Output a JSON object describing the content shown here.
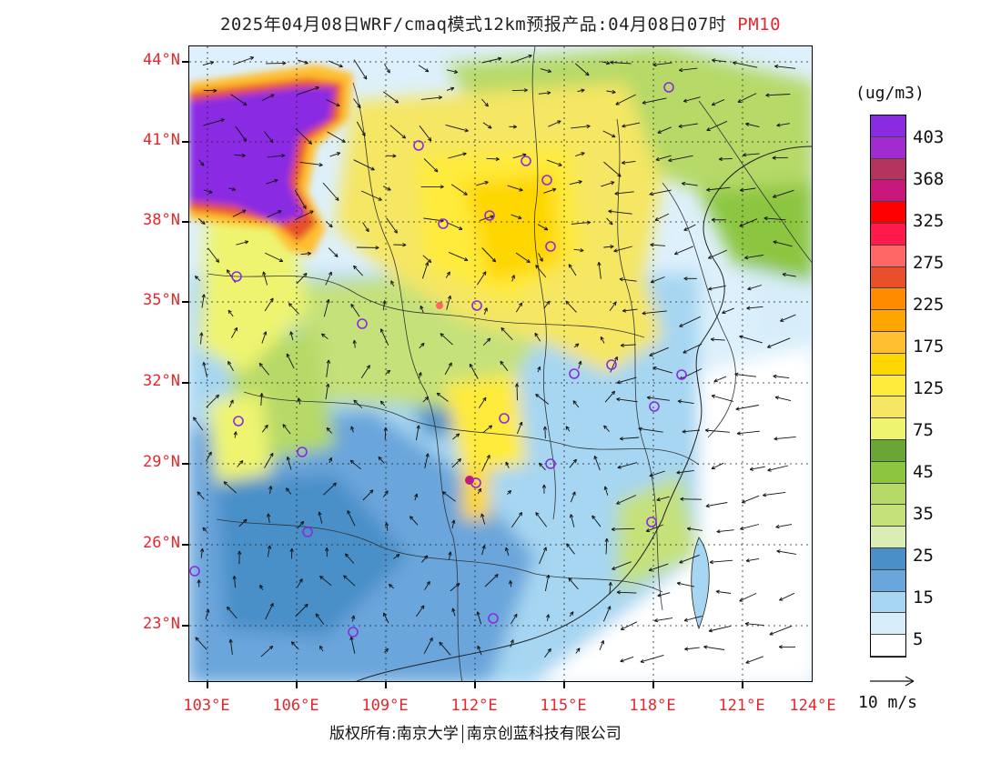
{
  "title": {
    "text": "2025年04月08日WRF/cmaq模式12km预报产品:04月08日07时",
    "pollutant": "PM10"
  },
  "latitudes": [
    "44°N",
    "41°N",
    "38°N",
    "35°N",
    "32°N",
    "29°N",
    "26°N",
    "23°N"
  ],
  "longitudes": [
    "103°E",
    "106°E",
    "109°E",
    "112°E",
    "115°E",
    "118°E",
    "121°E",
    "124°E"
  ],
  "legend": {
    "unit": "(ug/m3)",
    "labels": [
      "403",
      "368",
      "325",
      "275",
      "225",
      "175",
      "125",
      "75",
      "45",
      "35",
      "25",
      "15",
      "5"
    ],
    "colors": [
      "#8a2be2",
      "#a12bd0",
      "#b4345f",
      "#c8177a",
      "#ff0000",
      "#ff1a4b",
      "#ff6666",
      "#e8502a",
      "#ff8c00",
      "#ffa500",
      "#ffbf2e",
      "#ffd700",
      "#ffeb3b",
      "#f5e663",
      "#eef470",
      "#6aa535",
      "#8cc63f",
      "#b6d968",
      "#c5e17a",
      "#dcecb5",
      "#4a8fc8",
      "#6aa5db",
      "#a6d6f2",
      "#d7eefa",
      "#ffffff"
    ]
  },
  "vector_reference": {
    "label": "10 m/s"
  },
  "footer": {
    "left": "版权所有:南京大学",
    "right": "南京创蓝科技有限公司"
  },
  "colors": {
    "axis_label": "#e8262b",
    "station_marker": "#8a2be2"
  }
}
